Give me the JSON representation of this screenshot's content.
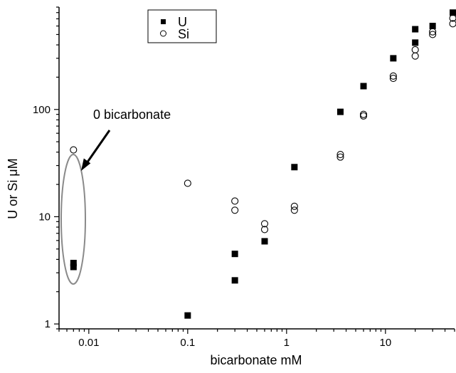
{
  "chart_data": {
    "type": "scatter",
    "title": "",
    "xlabel": "bicarbonate mM",
    "ylabel_prefix": "U or Si ",
    "ylabel_unit": "μM",
    "x_scale": "log",
    "y_scale": "log",
    "xlim": [
      0.005,
      50
    ],
    "ylim": [
      0.9,
      900
    ],
    "x_ticks": [
      {
        "value": 0.01,
        "label": "0.01"
      },
      {
        "value": 0.1,
        "label": "0.1"
      },
      {
        "value": 1,
        "label": "1"
      },
      {
        "value": 10,
        "label": "10"
      }
    ],
    "y_ticks": [
      {
        "value": 1,
        "label": "1"
      },
      {
        "value": 10,
        "label": "10"
      },
      {
        "value": 100,
        "label": "100"
      }
    ],
    "grid": false,
    "legend_position": "top-left",
    "series": [
      {
        "name": "U",
        "marker": "filled-square",
        "color": "#000000",
        "points": [
          {
            "x": 0.007,
            "y": 3.7
          },
          {
            "x": 0.007,
            "y": 3.4
          },
          {
            "x": 0.1,
            "y": 1.2
          },
          {
            "x": 0.3,
            "y": 4.5
          },
          {
            "x": 0.3,
            "y": 2.55
          },
          {
            "x": 0.6,
            "y": 5.9
          },
          {
            "x": 1.2,
            "y": 29
          },
          {
            "x": 3.5,
            "y": 95
          },
          {
            "x": 6,
            "y": 165
          },
          {
            "x": 12,
            "y": 300
          },
          {
            "x": 20,
            "y": 560
          },
          {
            "x": 20,
            "y": 420
          },
          {
            "x": 30,
            "y": 600
          },
          {
            "x": 48,
            "y": 800
          }
        ]
      },
      {
        "name": "Si",
        "marker": "open-circle",
        "color": "#000000",
        "points": [
          {
            "x": 0.007,
            "y": 42
          },
          {
            "x": 0.1,
            "y": 20.5
          },
          {
            "x": 0.3,
            "y": 14
          },
          {
            "x": 0.3,
            "y": 11.5
          },
          {
            "x": 0.6,
            "y": 8.6
          },
          {
            "x": 0.6,
            "y": 7.6
          },
          {
            "x": 1.2,
            "y": 12.5
          },
          {
            "x": 1.2,
            "y": 11.5
          },
          {
            "x": 3.5,
            "y": 38
          },
          {
            "x": 3.5,
            "y": 36
          },
          {
            "x": 6,
            "y": 90
          },
          {
            "x": 6,
            "y": 87
          },
          {
            "x": 12,
            "y": 205
          },
          {
            "x": 12,
            "y": 195
          },
          {
            "x": 20,
            "y": 360
          },
          {
            "x": 20,
            "y": 315
          },
          {
            "x": 30,
            "y": 530
          },
          {
            "x": 30,
            "y": 500
          },
          {
            "x": 48,
            "y": 710
          },
          {
            "x": 48,
            "y": 630
          }
        ]
      }
    ],
    "annotations": [
      {
        "text": "0  bicarbonate",
        "type": "arrow-label"
      }
    ]
  }
}
